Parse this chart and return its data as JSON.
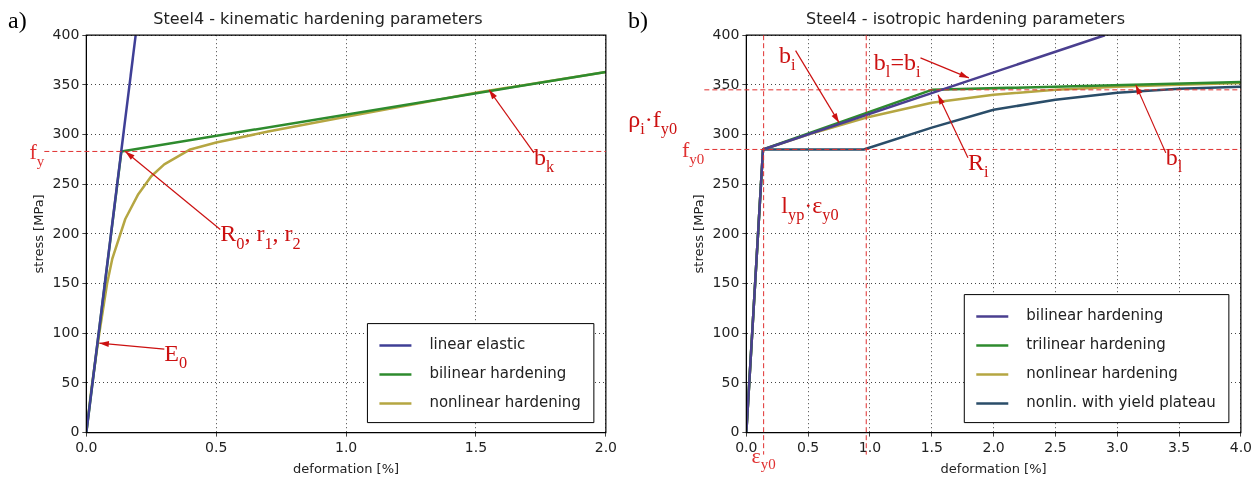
{
  "chart_data": [
    {
      "type": "line",
      "title": "Steel4 - kinematic hardening parameters",
      "xlabel": "deformation [%]",
      "ylabel": "stress [MPa]",
      "xlim": [
        0,
        2
      ],
      "xticks": [
        {
          "value": 0,
          "label": "0.0"
        },
        {
          "value": 0.5,
          "label": "0.5"
        },
        {
          "value": 1,
          "label": "1.0"
        },
        {
          "value": 1.5,
          "label": "1.5"
        },
        {
          "value": 2,
          "label": "2.0"
        }
      ],
      "ylim": [
        0,
        400
      ],
      "yticks": [
        0,
        50,
        100,
        150,
        200,
        250,
        300,
        350,
        400
      ],
      "grid": true,
      "legend": "bottom right",
      "marker": "none",
      "line_style": "solid",
      "series": [
        {
          "name": "linear elastic",
          "color": "#3f3f96",
          "x": [
            0,
            0.19
          ],
          "values": [
            0,
            400
          ]
        },
        {
          "name": "bilinear hardening",
          "color": "#2e8b2e",
          "x": [
            0,
            0.135,
            2.0
          ],
          "values": [
            0,
            283,
            363
          ]
        },
        {
          "name": "nonlinear hardening",
          "color": "#b5a642",
          "x": [
            0,
            0.02,
            0.05,
            0.08,
            0.1,
            0.15,
            0.2,
            0.25,
            0.3,
            0.4,
            0.5,
            0.7,
            1.0,
            1.5,
            2.0
          ],
          "values": [
            0,
            45,
            100,
            150,
            175,
            215,
            240,
            258,
            270,
            285,
            292,
            303,
            318,
            342,
            363
          ]
        }
      ],
      "ref_lines": [
        {
          "axis": "y",
          "value": 283,
          "label": "f$_{y}$",
          "color": "#e03030",
          "line_style": "dashed"
        }
      ],
      "annotations": [
        "a)",
        {
          "text": "R$_{0}$, r$_{1}$, r$_{2}$",
          "x": 0.15,
          "y": 283
        },
        {
          "text": "E$_{0}$",
          "x": 0.05,
          "y": 90
        },
        {
          "text": "b$_{k}$",
          "x": 1.55,
          "y": 345
        }
      ]
    },
    {
      "type": "line",
      "title": "Steel4 - isotropic hardening parameters",
      "xlabel": "deformation [%]",
      "ylabel": "stress [MPa]",
      "xlim": [
        0,
        4
      ],
      "xticks": [
        {
          "value": 0,
          "label": "0.0"
        },
        {
          "value": 0.5,
          "label": "0.5"
        },
        {
          "value": 1,
          "label": "1.0"
        },
        {
          "value": 1.5,
          "label": "1.5"
        },
        {
          "value": 2,
          "label": "2.0"
        },
        {
          "value": 2.5,
          "label": "2.5"
        },
        {
          "value": 3,
          "label": "3.0"
        },
        {
          "value": 3.5,
          "label": "3.5"
        },
        {
          "value": 4,
          "label": "4.0"
        }
      ],
      "ylim": [
        0,
        400
      ],
      "yticks": [
        0,
        50,
        100,
        150,
        200,
        250,
        300,
        350,
        400
      ],
      "grid": true,
      "legend": "bottom right",
      "marker": "none",
      "line_style": "solid",
      "series": [
        {
          "name": "bilinear hardening",
          "color": "#4a3f8f",
          "x": [
            0,
            0.135,
            2.9
          ],
          "values": [
            0,
            285,
            400
          ]
        },
        {
          "name": "trilinear hardening",
          "color": "#2e8b2e",
          "x": [
            0,
            0.135,
            1.5,
            4.0
          ],
          "values": [
            0,
            285,
            345,
            353
          ]
        },
        {
          "name": "nonlinear hardening",
          "color": "#b5a642",
          "x": [
            0,
            0.135,
            0.5,
            1.0,
            1.5,
            2.0,
            2.5,
            3.0,
            3.5,
            4.0
          ],
          "values": [
            0,
            285,
            300,
            318,
            332,
            340,
            345,
            348,
            350,
            352
          ]
        },
        {
          "name": "nonlin. with yield plateau",
          "color": "#2a4d69",
          "x": [
            0,
            0.135,
            0.95,
            1.5,
            2.0,
            2.5,
            3.0,
            3.5,
            4.0
          ],
          "values": [
            0,
            285,
            285,
            307,
            325,
            335,
            342,
            346,
            348
          ]
        }
      ],
      "ref_lines": [
        {
          "axis": "y",
          "value": 285,
          "label": "f$_{y0}$",
          "color": "#e03030",
          "line_style": "dashed"
        },
        {
          "axis": "y",
          "value": 345,
          "label": null,
          "color": "#e03030",
          "line_style": "dashed"
        },
        {
          "axis": "x",
          "value": 0.14,
          "label": "ε$_{y0}$",
          "color": "#e03030",
          "line_style": "dashed"
        },
        {
          "axis": "x",
          "value": 0.97,
          "label": null,
          "color": "#e03030",
          "line_style": "dashed"
        }
      ],
      "annotations": [
        "b)",
        {
          "text": "b$_{i}$",
          "x": 0.75,
          "y": 312
        },
        {
          "text": "b$_{l}$=b$_{i}$",
          "x": 1.8,
          "y": 357
        },
        {
          "text": "R$_{i}$",
          "x": 1.55,
          "y": 340
        },
        {
          "text": "b$_{l}$",
          "x": 3.15,
          "y": 350
        },
        "ρ$_{i}$·f$_{y0}$",
        "l$_{yp}$·ε$_{y0}$"
      ]
    }
  ]
}
